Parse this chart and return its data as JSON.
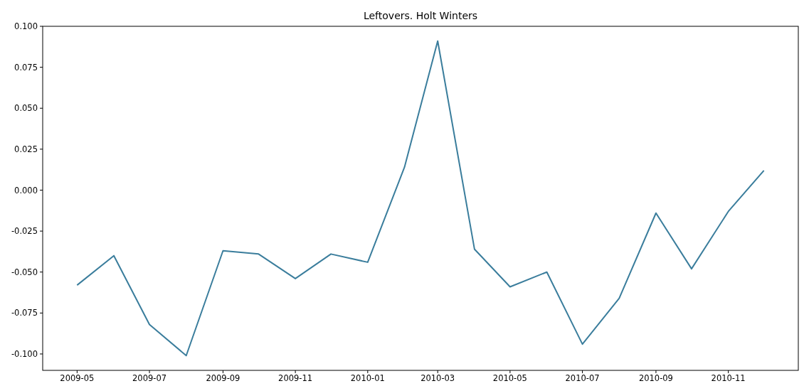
{
  "chart_data": {
    "type": "line",
    "title": "Leftovers. Holt Winters",
    "x": [
      "2009-05",
      "2009-06",
      "2009-07",
      "2009-08",
      "2009-09",
      "2009-10",
      "2009-11",
      "2009-12",
      "2010-01",
      "2010-02",
      "2010-03",
      "2010-04",
      "2010-05",
      "2010-06",
      "2010-07",
      "2010-08",
      "2010-09",
      "2010-10",
      "2010-11",
      "2010-12"
    ],
    "series": [
      {
        "color": "#3a7d9c",
        "values": [
          -0.058,
          -0.04,
          -0.082,
          -0.101,
          -0.037,
          -0.039,
          -0.054,
          -0.039,
          -0.044,
          0.014,
          0.091,
          -0.036,
          -0.059,
          -0.05,
          -0.094,
          -0.066,
          -0.014,
          -0.048,
          -0.013,
          0.012
        ]
      }
    ],
    "xlim": [
      "2009-04-02",
      "2010-12-30"
    ],
    "xticks": [
      "2009-05",
      "2009-07",
      "2009-09",
      "2009-11",
      "2010-01",
      "2010-03",
      "2010-05",
      "2010-07",
      "2010-09",
      "2010-11"
    ],
    "ylim": [
      -0.11,
      0.1
    ],
    "yticks": [
      {
        "value": -0.1,
        "label": "-0.100"
      },
      {
        "value": -0.075,
        "label": "-0.075"
      },
      {
        "value": -0.05,
        "label": "-0.050"
      },
      {
        "value": -0.025,
        "label": "-0.025"
      },
      {
        "value": 0,
        "label": "0.000"
      },
      {
        "value": 0.025,
        "label": "0.025"
      },
      {
        "value": 0.05,
        "label": "0.050"
      },
      {
        "value": 0.075,
        "label": "0.075"
      },
      {
        "value": 0.1,
        "label": "0.100"
      }
    ],
    "grid": false
  }
}
